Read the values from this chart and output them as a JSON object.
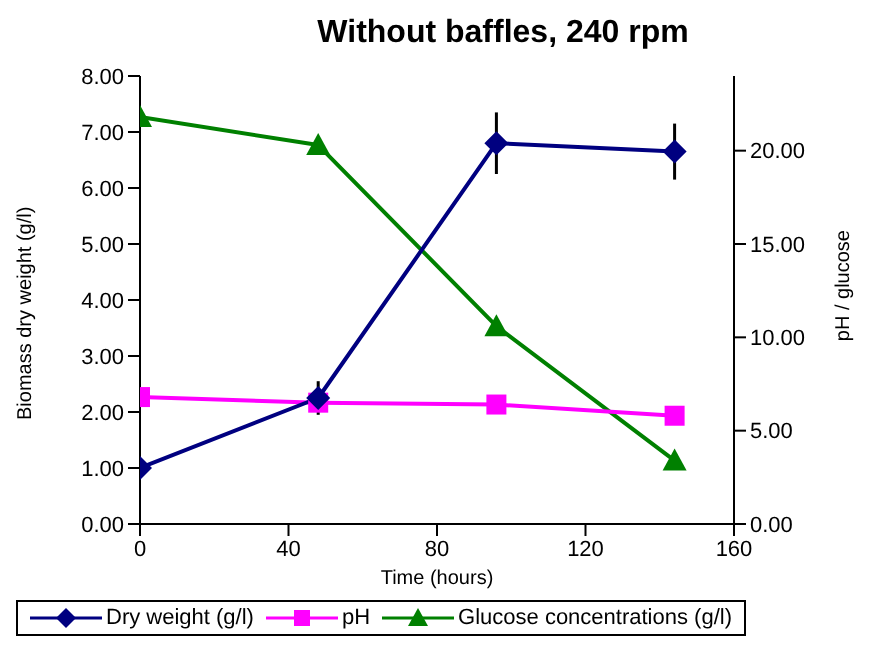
{
  "chart_data": {
    "type": "line",
    "title": "Without baffles, 240 rpm",
    "xlabel": "Time (hours)",
    "ylabel": "Biomass dry weight (g/l)",
    "y2label": "pH / glucose",
    "x": [
      0,
      48,
      96,
      144
    ],
    "series": [
      {
        "name": "Dry weight (g/l)",
        "color": "#000080",
        "values": [
          1.0,
          2.25,
          6.8,
          6.65
        ],
        "errors": [
          null,
          0.3,
          0.55,
          0.5
        ],
        "marker": "diamond"
      },
      {
        "name": "pH",
        "color": "#ff00ff",
        "values": [
          6.8,
          6.5,
          6.4,
          5.8
        ],
        "axis": "y2",
        "marker": "square"
      },
      {
        "name": "Glucose concentrations (g/l)",
        "color": "#008000",
        "values": [
          21.8,
          20.3,
          10.6,
          3.4
        ],
        "axis": "y2",
        "marker": "triangle"
      }
    ],
    "xlim": [
      0,
      160
    ],
    "xticks": [
      0,
      40,
      80,
      120,
      160
    ],
    "ylim": [
      0,
      8
    ],
    "yticks": [
      {
        "value": 0,
        "label": "0.00"
      },
      {
        "value": 1,
        "label": "1.00"
      },
      {
        "value": 2,
        "label": "2.00"
      },
      {
        "value": 3,
        "label": "3.00"
      },
      {
        "value": 4,
        "label": "4.00"
      },
      {
        "value": 5,
        "label": "5.00"
      },
      {
        "value": 6,
        "label": "6.00"
      },
      {
        "value": 7,
        "label": "7.00"
      },
      {
        "value": 8,
        "label": "8.00"
      }
    ],
    "y2lim": [
      0,
      24
    ],
    "y2ticks": [
      {
        "value": 0,
        "label": "0.00"
      },
      {
        "value": 5,
        "label": "5.00"
      },
      {
        "value": 10,
        "label": "10.00"
      },
      {
        "value": 15,
        "label": "15.00"
      },
      {
        "value": 20,
        "label": "20.00"
      }
    ],
    "grid": false,
    "legend": "bottom",
    "line_style": "solid"
  }
}
